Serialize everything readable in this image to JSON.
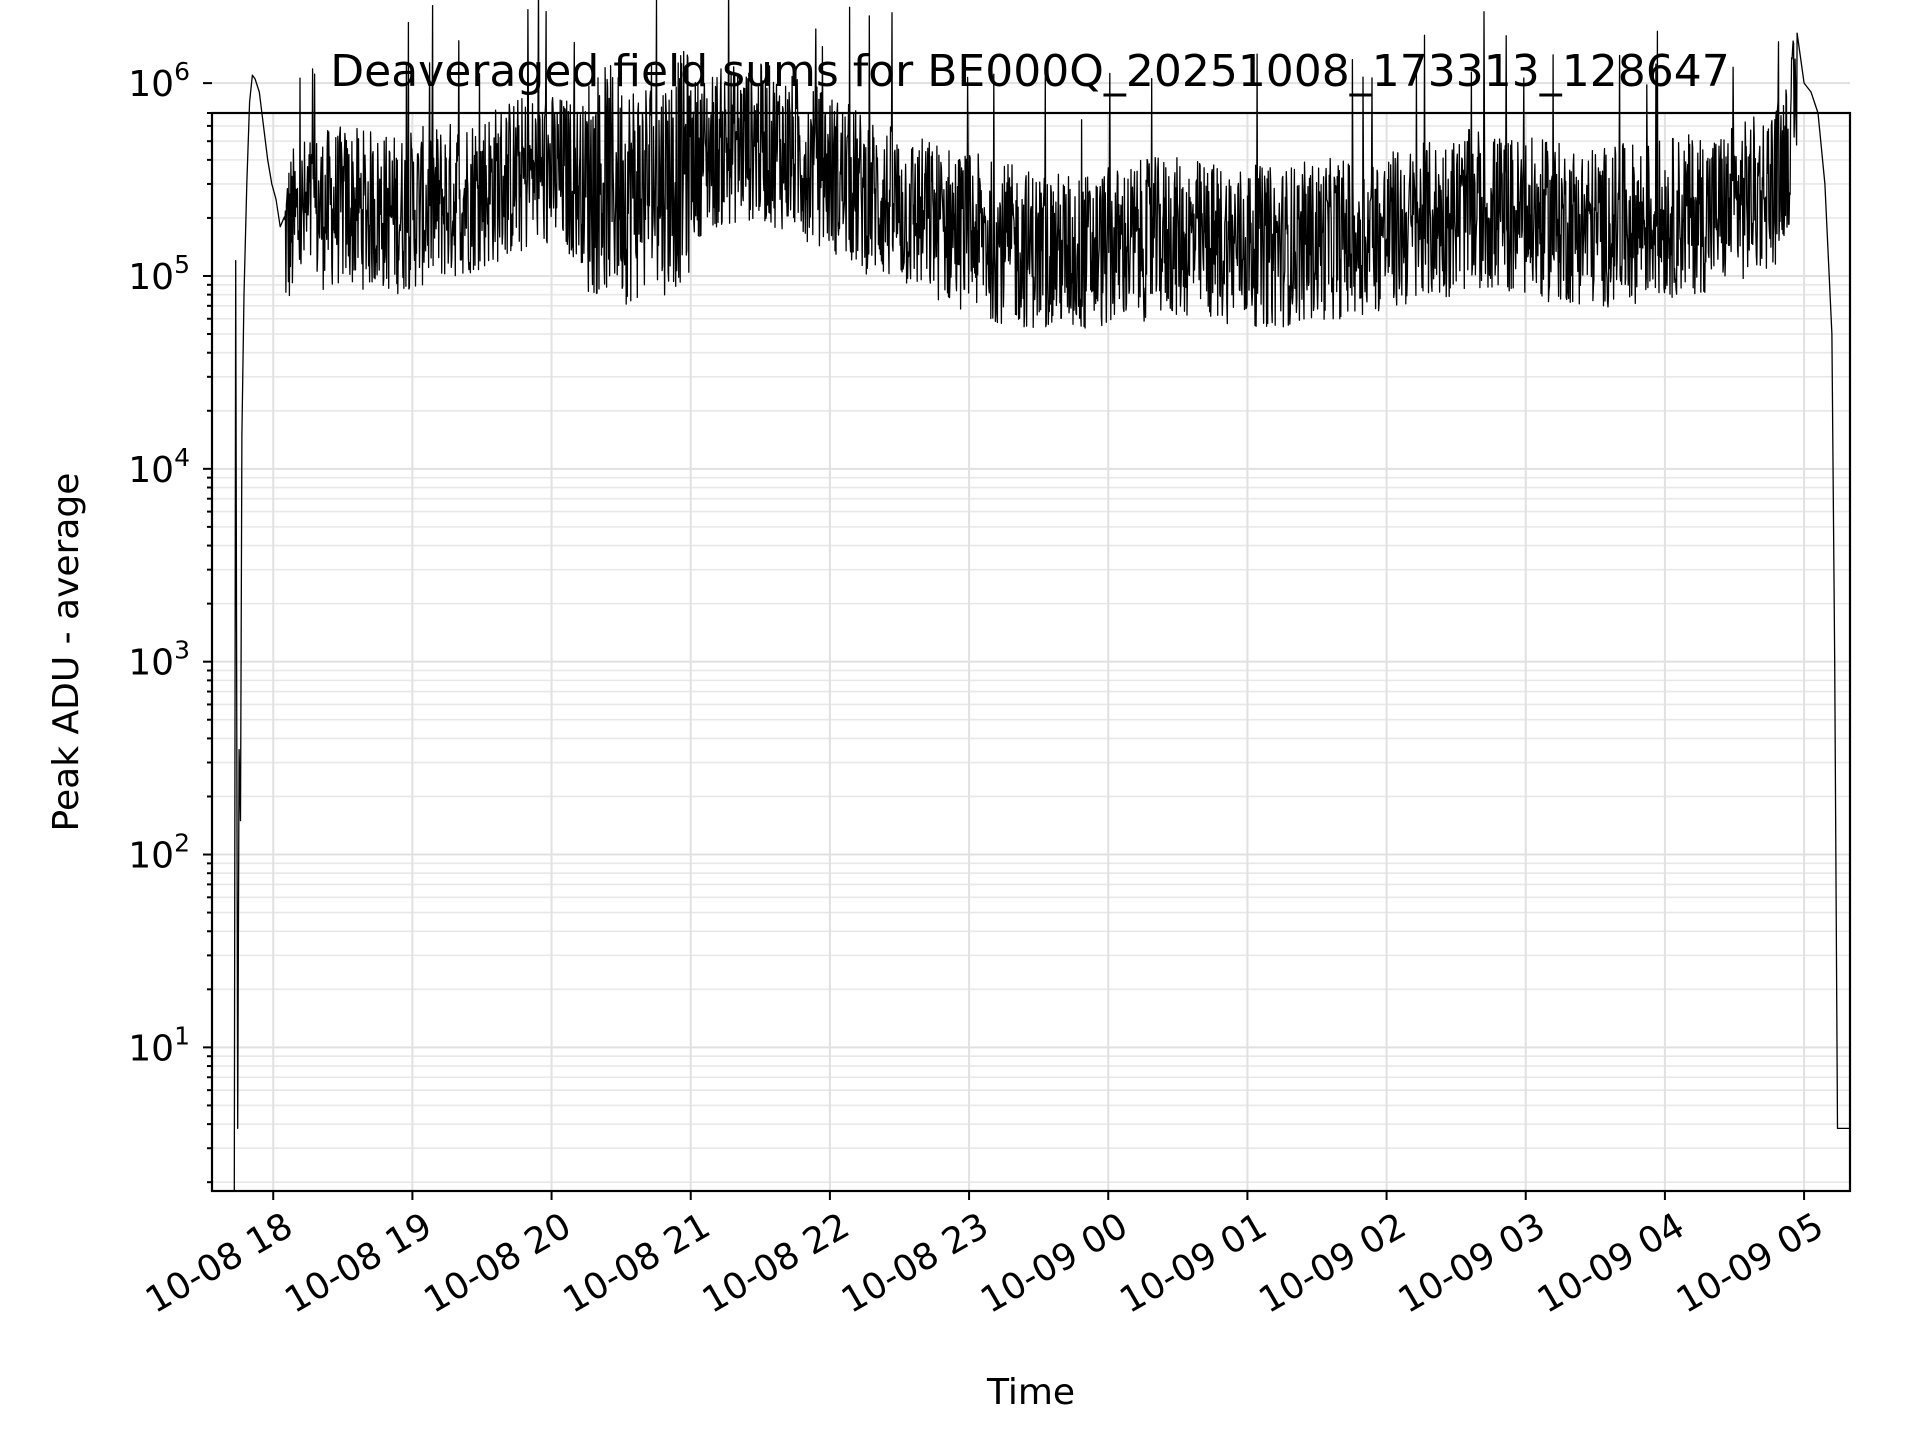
{
  "chart_data": {
    "type": "line",
    "title": "Deaveraged field sums for BE000Q_20251008_173313_128647",
    "xlabel": "Time",
    "ylabel": "Peak ADU - average",
    "yscale": "log",
    "ylim": [
      1.8,
      700000
    ],
    "xlim_hours": [
      17.56,
      29.33
    ],
    "grid": true,
    "x_ticks": [
      {
        "hour": 18,
        "label": "10-08 18"
      },
      {
        "hour": 19,
        "label": "10-08 19"
      },
      {
        "hour": 20,
        "label": "10-08 20"
      },
      {
        "hour": 21,
        "label": "10-08 21"
      },
      {
        "hour": 22,
        "label": "10-08 22"
      },
      {
        "hour": 23,
        "label": "10-08 23"
      },
      {
        "hour": 24,
        "label": "10-09 00"
      },
      {
        "hour": 25,
        "label": "10-09 01"
      },
      {
        "hour": 26,
        "label": "10-09 02"
      },
      {
        "hour": 27,
        "label": "10-09 03"
      },
      {
        "hour": 28,
        "label": "10-09 04"
      },
      {
        "hour": 29,
        "label": "10-09 05"
      }
    ],
    "y_ticks": [
      {
        "exp": 1,
        "base": "10",
        "sup": "1"
      },
      {
        "exp": 2,
        "base": "10",
        "sup": "2"
      },
      {
        "exp": 3,
        "base": "10",
        "sup": "3"
      },
      {
        "exp": 4,
        "base": "10",
        "sup": "4"
      },
      {
        "exp": 5,
        "base": "10",
        "sup": "5"
      },
      {
        "exp": 6,
        "base": "10",
        "sup": "6"
      }
    ],
    "series": [
      {
        "name": "Peak ADU - average",
        "color": "#000000",
        "x_hours": [
          17.72,
          17.73,
          17.745,
          17.755,
          17.765,
          17.775,
          17.79,
          17.81,
          17.83,
          17.85,
          17.87,
          17.9,
          17.93,
          17.96,
          17.99,
          18.02,
          18.05,
          18.08,
          18.12,
          18.16,
          18.2,
          18.25,
          18.35,
          18.5,
          18.7,
          18.9,
          19.1,
          19.3,
          19.5,
          19.7,
          19.9,
          20.1,
          20.25,
          20.4,
          20.55,
          20.7,
          20.85,
          21.0,
          21.15,
          21.3,
          21.45,
          21.6,
          21.75,
          21.9,
          22.05,
          22.2,
          22.4,
          22.6,
          22.8,
          23.0,
          23.2,
          23.4,
          23.6,
          23.8,
          24.0,
          24.2,
          24.4,
          24.6,
          24.8,
          25.0,
          25.2,
          25.4,
          25.6,
          25.8,
          26.0,
          26.2,
          26.4,
          26.6,
          26.8,
          27.0,
          27.2,
          27.4,
          27.6,
          27.8,
          28.0,
          28.2,
          28.4,
          28.6,
          28.8,
          28.9,
          28.95,
          29.0,
          29.05,
          29.1,
          29.15,
          29.2,
          29.22,
          29.24,
          29.25,
          29.33
        ],
        "y_values": [
          1.8,
          120000,
          3.8,
          350,
          150,
          15000,
          80000,
          300000,
          800000,
          1100000,
          1050000,
          900000,
          600000,
          400000,
          300000,
          250000,
          180000,
          150000,
          170000,
          190000,
          200000,
          210000,
          220000,
          230000,
          220000,
          210000,
          230000,
          250000,
          280000,
          320000,
          350000,
          330000,
          300000,
          320000,
          280000,
          300000,
          320000,
          400000,
          450000,
          480000,
          500000,
          470000,
          420000,
          380000,
          330000,
          280000,
          240000,
          210000,
          190000,
          170000,
          150000,
          140000,
          135000,
          130000,
          140000,
          150000,
          160000,
          155000,
          150000,
          145000,
          140000,
          150000,
          155000,
          160000,
          170000,
          180000,
          200000,
          220000,
          210000,
          200000,
          190000,
          185000,
          180000,
          190000,
          200000,
          210000,
          220000,
          250000,
          300000,
          500000,
          900000,
          1000000,
          900000,
          700000,
          300000,
          50000,
          1000,
          3.8,
          3.8,
          3.8
        ],
        "envelope_note": "dense noise band roughly 5e4 to 1e6 between 18:05 and 04:55"
      }
    ]
  }
}
